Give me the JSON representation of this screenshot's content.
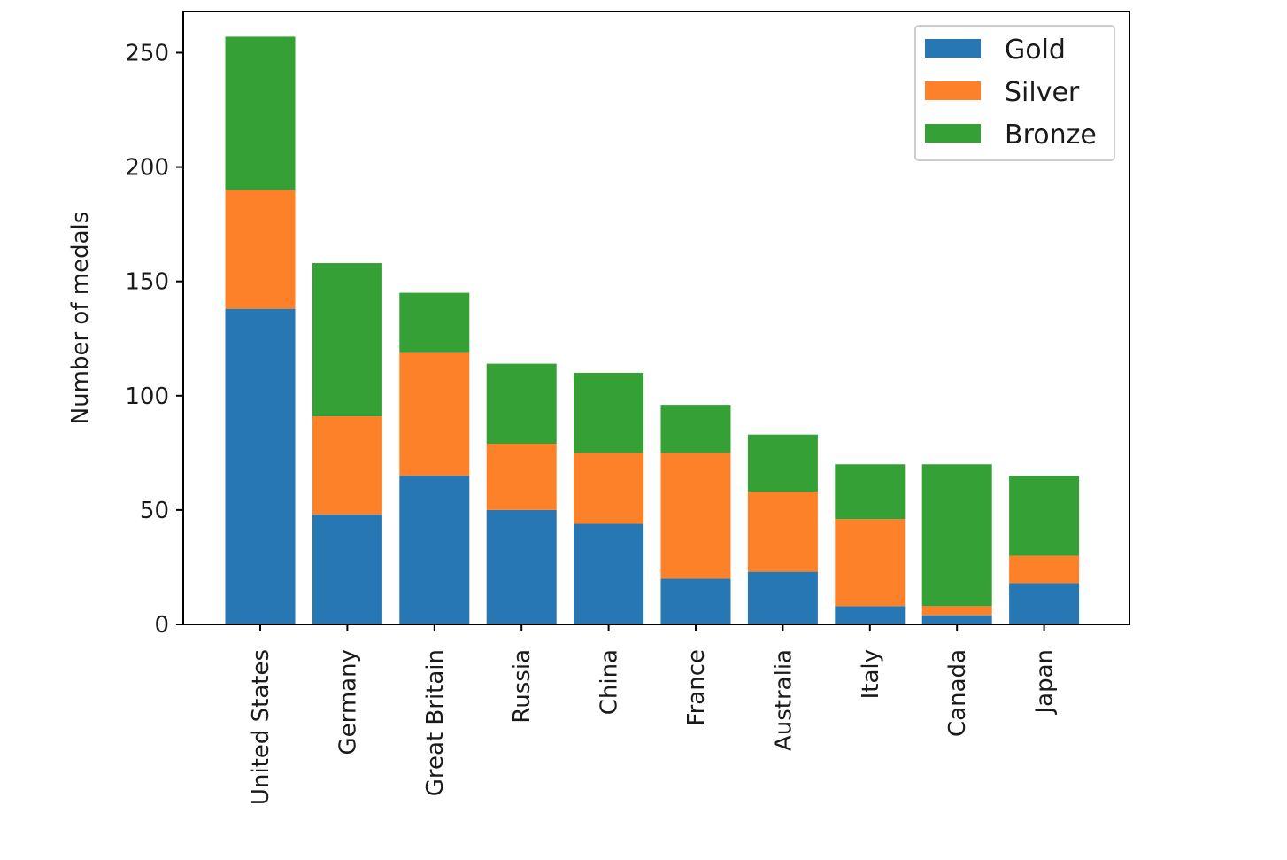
{
  "chart_data": {
    "type": "bar",
    "stacked": true,
    "categories": [
      "United States",
      "Germany",
      "Great Britain",
      "Russia",
      "China",
      "France",
      "Australia",
      "Italy",
      "Canada",
      "Japan"
    ],
    "series": [
      {
        "name": "Gold",
        "color": "#2677b4",
        "values": [
          138,
          48,
          65,
          50,
          44,
          20,
          23,
          8,
          4,
          18
        ]
      },
      {
        "name": "Silver",
        "color": "#fd8128",
        "values": [
          52,
          43,
          54,
          29,
          31,
          55,
          35,
          38,
          4,
          12
        ]
      },
      {
        "name": "Bronze",
        "color": "#35a035",
        "values": [
          67,
          67,
          26,
          35,
          35,
          21,
          25,
          24,
          62,
          35
        ]
      }
    ],
    "ylabel": "Number of medals",
    "xlabel": "",
    "ylim": [
      0,
      268
    ],
    "yticks": [
      0,
      50,
      100,
      150,
      200,
      250
    ],
    "grid": false,
    "legend_position": "top-right",
    "xtick_rotation": "vertical"
  }
}
